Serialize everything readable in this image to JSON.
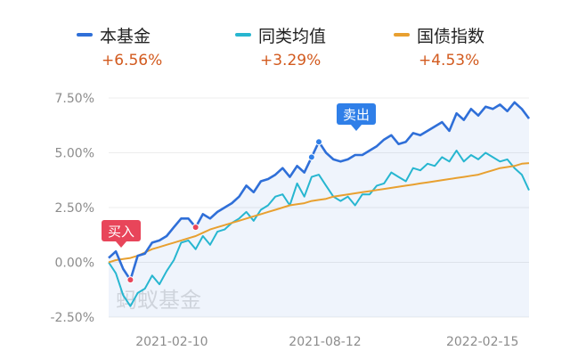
{
  "colors": {
    "fund": "#2f6fd8",
    "peer": "#27b6d0",
    "index": "#e8a030",
    "return_text": "#d25a1e",
    "buy": "#e8455a",
    "sell": "#2f7fe8",
    "axis_text": "#8c8c8c",
    "grid": "#ececec",
    "watermark": "#dddddd"
  },
  "legend": [
    {
      "name": "本基金",
      "value": "+6.56%",
      "color": "#2f6fd8",
      "icon": "line-swatch-icon"
    },
    {
      "name": "同类均值",
      "value": "+3.29%",
      "color": "#27b6d0",
      "icon": "line-swatch-icon"
    },
    {
      "name": "国债指数",
      "value": "+4.53%",
      "color": "#e8a030",
      "icon": "line-swatch-icon"
    }
  ],
  "markers": {
    "buy_label": "买入",
    "sell_label": "卖出"
  },
  "watermark": "蚂蚁基金",
  "chart_data": {
    "type": "line",
    "x": [
      "2021-01-15",
      "2021-01-22",
      "2021-01-29",
      "2021-02-05",
      "2021-02-12",
      "2021-02-19",
      "2021-02-26",
      "2021-03-05",
      "2021-03-12",
      "2021-03-19",
      "2021-03-26",
      "2021-04-02",
      "2021-04-09",
      "2021-04-16",
      "2021-04-23",
      "2021-04-30",
      "2021-05-07",
      "2021-05-14",
      "2021-05-21",
      "2021-05-28",
      "2021-06-04",
      "2021-06-11",
      "2021-06-18",
      "2021-06-25",
      "2021-07-02",
      "2021-07-09",
      "2021-07-16",
      "2021-07-23",
      "2021-07-30",
      "2021-08-06",
      "2021-08-13",
      "2021-08-20",
      "2021-08-27",
      "2021-09-03",
      "2021-09-10",
      "2021-09-17",
      "2021-09-24",
      "2021-10-01",
      "2021-10-08",
      "2021-10-15",
      "2021-10-22",
      "2021-10-29",
      "2021-11-05",
      "2021-11-12",
      "2021-11-19",
      "2021-11-26",
      "2021-12-03",
      "2021-12-10",
      "2021-12-17",
      "2021-12-24",
      "2021-12-31",
      "2022-01-07",
      "2022-01-14",
      "2022-01-21",
      "2022-01-28",
      "2022-02-04",
      "2022-02-11",
      "2022-02-18",
      "2022-02-25"
    ],
    "x_ticks": [
      "2021-02-10",
      "2021-08-12",
      "2022-02-15"
    ],
    "y_ticks": [
      "7.50%",
      "5.00%",
      "2.50%",
      "0.00%",
      "-2.50%"
    ],
    "ylim": [
      -2.5,
      7.5
    ],
    "unit": "%",
    "grid": true,
    "legend_position": "top",
    "series": [
      {
        "name": "本基金",
        "color": "#2f6fd8",
        "values": [
          0.2,
          0.5,
          -0.3,
          -0.8,
          0.3,
          0.4,
          0.9,
          1.0,
          1.2,
          1.6,
          2.0,
          2.0,
          1.6,
          2.2,
          2.0,
          2.3,
          2.5,
          2.7,
          3.0,
          3.5,
          3.2,
          3.7,
          3.8,
          4.0,
          4.3,
          3.9,
          4.4,
          4.1,
          4.8,
          5.5,
          5.0,
          4.7,
          4.6,
          4.7,
          4.9,
          4.9,
          5.1,
          5.3,
          5.6,
          5.8,
          5.4,
          5.5,
          5.9,
          5.8,
          6.0,
          6.2,
          6.4,
          6.0,
          6.8,
          6.5,
          7.0,
          6.7,
          7.1,
          7.0,
          7.2,
          6.9,
          7.3,
          7.0,
          6.56
        ]
      },
      {
        "name": "同类均值",
        "color": "#27b6d0",
        "values": [
          0.0,
          -0.5,
          -1.5,
          -2.0,
          -1.4,
          -1.2,
          -0.6,
          -1.0,
          -0.4,
          0.1,
          0.9,
          1.0,
          0.6,
          1.2,
          0.8,
          1.4,
          1.5,
          1.8,
          2.0,
          2.3,
          1.9,
          2.4,
          2.6,
          3.0,
          3.1,
          2.6,
          3.6,
          3.0,
          3.9,
          4.0,
          3.5,
          3.0,
          2.8,
          3.0,
          2.6,
          3.1,
          3.1,
          3.5,
          3.6,
          4.1,
          3.9,
          3.7,
          4.3,
          4.2,
          4.5,
          4.4,
          4.8,
          4.6,
          5.1,
          4.6,
          4.9,
          4.7,
          5.0,
          4.8,
          4.6,
          4.7,
          4.3,
          4.0,
          3.29
        ]
      },
      {
        "name": "国债指数",
        "color": "#e8a030",
        "values": [
          0.0,
          0.1,
          0.15,
          0.2,
          0.3,
          0.45,
          0.6,
          0.7,
          0.8,
          0.9,
          1.0,
          1.1,
          1.2,
          1.35,
          1.5,
          1.6,
          1.7,
          1.8,
          1.9,
          2.0,
          2.1,
          2.2,
          2.3,
          2.4,
          2.5,
          2.6,
          2.65,
          2.7,
          2.8,
          2.85,
          2.9,
          3.0,
          3.05,
          3.1,
          3.15,
          3.2,
          3.25,
          3.3,
          3.35,
          3.4,
          3.45,
          3.5,
          3.55,
          3.6,
          3.65,
          3.7,
          3.75,
          3.8,
          3.85,
          3.9,
          3.95,
          4.0,
          4.1,
          4.2,
          4.3,
          4.35,
          4.4,
          4.5,
          4.53
        ]
      }
    ],
    "buy_points": [
      {
        "x": "2021-02-05",
        "y": -0.8
      },
      {
        "x": "2021-04-09",
        "y": 1.6
      }
    ],
    "sell_points": [
      {
        "x": "2021-07-30",
        "y": 4.8
      },
      {
        "x": "2021-08-06",
        "y": 5.5
      }
    ]
  }
}
